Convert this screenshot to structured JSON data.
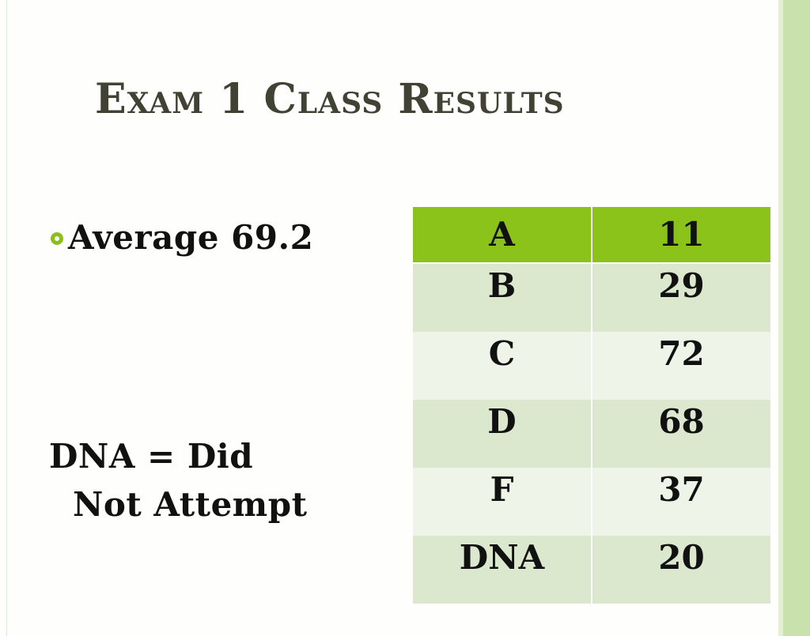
{
  "title": "Exam 1 Class Results",
  "bullet": "Average 69.2",
  "note": {
    "line1": "DNA = Did",
    "line2": "Not Attempt"
  },
  "colors": {
    "accent_green": "#8cc31a",
    "band_green": "#c9e1ad",
    "row_dark": "#dbe8cd",
    "row_light": "#eef4e8",
    "title_text": "#414233"
  },
  "table": {
    "rows": [
      {
        "grade": "A",
        "count": "11"
      },
      {
        "grade": "B",
        "count": "29"
      },
      {
        "grade": "C",
        "count": "72"
      },
      {
        "grade": "D",
        "count": "68"
      },
      {
        "grade": "F",
        "count": "37"
      },
      {
        "grade": "DNA",
        "count": "20"
      }
    ]
  }
}
